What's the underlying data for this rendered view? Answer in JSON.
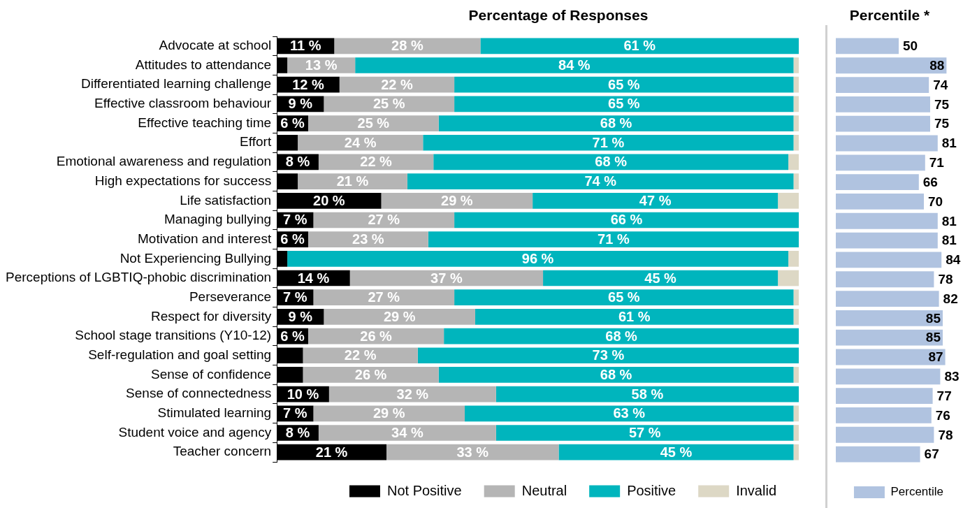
{
  "chart_data": [
    {
      "type": "bar",
      "title": "Percentage of Responses",
      "orientation": "horizontal",
      "stacked": true,
      "legend": "bottom",
      "tick_labels": "y",
      "xlim": [
        0,
        100
      ],
      "categories": [
        "Advocate at school",
        "Attitudes to attendance",
        "Differentiated learning challenge",
        "Effective classroom behaviour",
        "Effective teaching time",
        "Effort",
        "Emotional awareness and regulation",
        "High expectations for success",
        "Life satisfaction",
        "Managing bullying",
        "Motivation and interest",
        "Not Experiencing Bullying",
        "Perceptions of LGBTIQ-phobic discrimination",
        "Perseverance",
        "Respect for diversity",
        "School stage transitions (Y10-12)",
        "Self-regulation and goal setting",
        "Sense of confidence",
        "Sense of connectedness",
        "Stimulated learning",
        "Student voice and agency",
        "Teacher concern"
      ],
      "series": [
        {
          "name": "Not Positive",
          "color": "#000000",
          "values": [
            11,
            2,
            12,
            9,
            6,
            4,
            8,
            4,
            20,
            7,
            6,
            2,
            14,
            7,
            9,
            6,
            5,
            5,
            10,
            7,
            8,
            21
          ],
          "value_labels": [
            "11 %",
            null,
            "12 %",
            "9 %",
            "6 %",
            null,
            "8 %",
            null,
            "20 %",
            "7 %",
            "6 %",
            null,
            "14 %",
            "7 %",
            "9 %",
            "6 %",
            null,
            null,
            "10 %",
            "7 %",
            "8 %",
            "21 %"
          ]
        },
        {
          "name": "Neutral",
          "color": "#b5b5b5",
          "values": [
            28,
            13,
            22,
            25,
            25,
            24,
            22,
            21,
            29,
            27,
            23,
            0,
            37,
            27,
            29,
            26,
            22,
            26,
            32,
            29,
            34,
            33
          ],
          "value_labels": [
            "28 %",
            "13 %",
            "22 %",
            "25 %",
            "25 %",
            "24 %",
            "22 %",
            "21 %",
            "29 %",
            "27 %",
            "23 %",
            null,
            "37 %",
            "27 %",
            "29 %",
            "26 %",
            "22 %",
            "26 %",
            "32 %",
            "29 %",
            "34 %",
            "33 %"
          ]
        },
        {
          "name": "Positive",
          "color": "#00b5bd",
          "values": [
            61,
            84,
            65,
            65,
            68,
            71,
            68,
            74,
            47,
            66,
            71,
            96,
            45,
            65,
            61,
            68,
            73,
            68,
            58,
            63,
            57,
            45
          ],
          "value_labels": [
            "61 %",
            "84 %",
            "65 %",
            "65 %",
            "68 %",
            "71 %",
            "68 %",
            "74 %",
            "47 %",
            "66 %",
            "71 %",
            "96 %",
            "45 %",
            "65 %",
            "61 %",
            "68 %",
            "73 %",
            "68 %",
            "58 %",
            "63 %",
            "57 %",
            "45 %"
          ]
        },
        {
          "name": "Invalid",
          "color": "#ddd8c5",
          "values": [
            0,
            1,
            1,
            1,
            1,
            1,
            2,
            1,
            4,
            0,
            0,
            2,
            4,
            1,
            1,
            0,
            0,
            1,
            0,
            1,
            1,
            1
          ],
          "value_labels": [
            null,
            null,
            null,
            null,
            null,
            null,
            null,
            null,
            null,
            null,
            null,
            null,
            null,
            null,
            null,
            null,
            null,
            null,
            null,
            null,
            null,
            null
          ]
        }
      ]
    },
    {
      "type": "bar",
      "title": "Percentile *",
      "orientation": "horizontal",
      "legend": "bottom",
      "tick_labels": false,
      "data_labels": true,
      "categories": [
        null,
        null,
        null,
        null,
        null,
        null,
        null,
        null,
        null,
        null,
        null,
        null,
        null,
        null,
        null,
        null,
        null,
        null,
        null,
        null,
        null,
        null
      ],
      "series": [
        {
          "name": "Percentile",
          "color": "#b0c3e0",
          "values": [
            50,
            88,
            74,
            75,
            75,
            81,
            71,
            66,
            70,
            81,
            81,
            84,
            78,
            82,
            85,
            85,
            87,
            83,
            77,
            76,
            78,
            67
          ]
        }
      ]
    }
  ]
}
